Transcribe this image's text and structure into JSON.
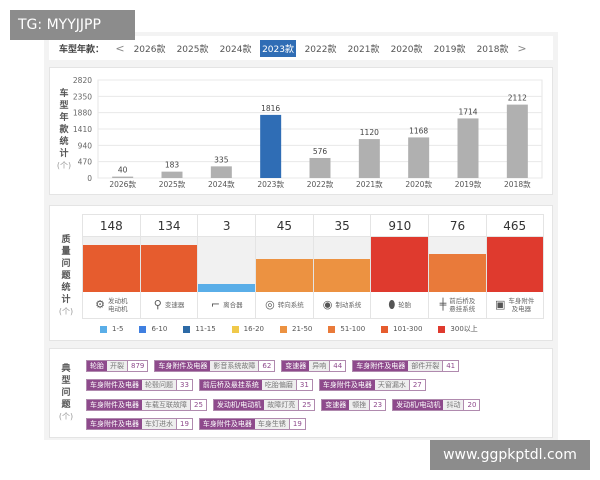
{
  "overlay": {
    "tg_label": "TG: MYYJJPP",
    "watermark": "www.ggpkptdl.com"
  },
  "year_selector": {
    "label": "车型年款：",
    "prev": "<",
    "next": ">",
    "years": [
      "2026款",
      "2025款",
      "2024款",
      "2023款",
      "2022款",
      "2021款",
      "2020款",
      "2019款",
      "2018款"
    ],
    "selected": "2023款"
  },
  "chart_data": {
    "type": "bar",
    "title": "车型年款统计",
    "ylabel": "车型年款统计",
    "yunit": "(个)",
    "categories": [
      "2026款",
      "2025款",
      "2024款",
      "2023款",
      "2022款",
      "2021款",
      "2020款",
      "2019款",
      "2018款"
    ],
    "values": [
      40,
      183,
      335,
      1816,
      576,
      1120,
      1168,
      1714,
      2112
    ],
    "highlight": "2023款",
    "yticks": [
      0,
      470,
      940,
      1410,
      1880,
      2350,
      2820
    ],
    "ylim": [
      0,
      2820
    ],
    "grid": true,
    "colors": {
      "bar": "#b0b0b0",
      "highlight": "#2f6db5"
    }
  },
  "quality": {
    "label": "质量问题统计",
    "unit": "(个)",
    "items": [
      {
        "name": "发动机\n电动机",
        "value": 148,
        "bin": 6,
        "icon": "engine-icon"
      },
      {
        "name": "变速器",
        "value": 134,
        "bin": 6,
        "icon": "gear-shift-icon"
      },
      {
        "name": "离合器",
        "value": 3,
        "bin": 0,
        "icon": "clutch-pedal-icon"
      },
      {
        "name": "转向系统",
        "value": 45,
        "bin": 4,
        "icon": "steering-wheel-icon"
      },
      {
        "name": "制动系统",
        "value": 35,
        "bin": 4,
        "icon": "brake-disc-icon"
      },
      {
        "name": "轮胎",
        "value": 910,
        "bin": 7,
        "icon": "tire-icon"
      },
      {
        "name": "前后桥及\n悬挂系统",
        "value": 76,
        "bin": 5,
        "icon": "axle-icon"
      },
      {
        "name": "车身附件\n及电器",
        "value": 465,
        "bin": 7,
        "icon": "battery-icon"
      }
    ],
    "legend": [
      {
        "label": "1-5",
        "color": "#5aaee8"
      },
      {
        "label": "6-10",
        "color": "#3f7fe0"
      },
      {
        "label": "11-15",
        "color": "#2d6aa6"
      },
      {
        "label": "16-20",
        "color": "#f0c94a"
      },
      {
        "label": "21-50",
        "color": "#ec9241"
      },
      {
        "label": "51-100",
        "color": "#e97a3a"
      },
      {
        "label": "101-300",
        "color": "#e65c2e"
      },
      {
        "label": "300以上",
        "color": "#df3a2e"
      }
    ]
  },
  "typical": {
    "label": "典型问题",
    "unit": "(个)",
    "rows": [
      [
        {
          "c": "轮胎",
          "i": "开裂",
          "n": "879"
        },
        {
          "c": "车身附件及电器",
          "i": "影音系统故障",
          "n": "62"
        },
        {
          "c": "变速器",
          "i": "异响",
          "n": "44"
        },
        {
          "c": "车身附件及电器",
          "i": "部件开裂",
          "n": "41"
        }
      ],
      [
        {
          "c": "车身附件及电器",
          "i": "轮毂问题",
          "n": "33"
        },
        {
          "c": "前后桥及悬挂系统",
          "i": "吃胎偏磨",
          "n": "31"
        },
        {
          "c": "车身附件及电器",
          "i": "天窗漏水",
          "n": "27"
        }
      ],
      [
        {
          "c": "车身附件及电器",
          "i": "车载互联故障",
          "n": "25"
        },
        {
          "c": "发动机/电动机",
          "i": "故障灯亮",
          "n": "25"
        },
        {
          "c": "变速器",
          "i": "顿挫",
          "n": "23"
        },
        {
          "c": "发动机/电动机",
          "i": "抖动",
          "n": "20"
        }
      ],
      [
        {
          "c": "车身附件及电器",
          "i": "车灯进水",
          "n": "19"
        },
        {
          "c": "车身附件及电器",
          "i": "车身生锈",
          "n": "19"
        }
      ]
    ]
  }
}
